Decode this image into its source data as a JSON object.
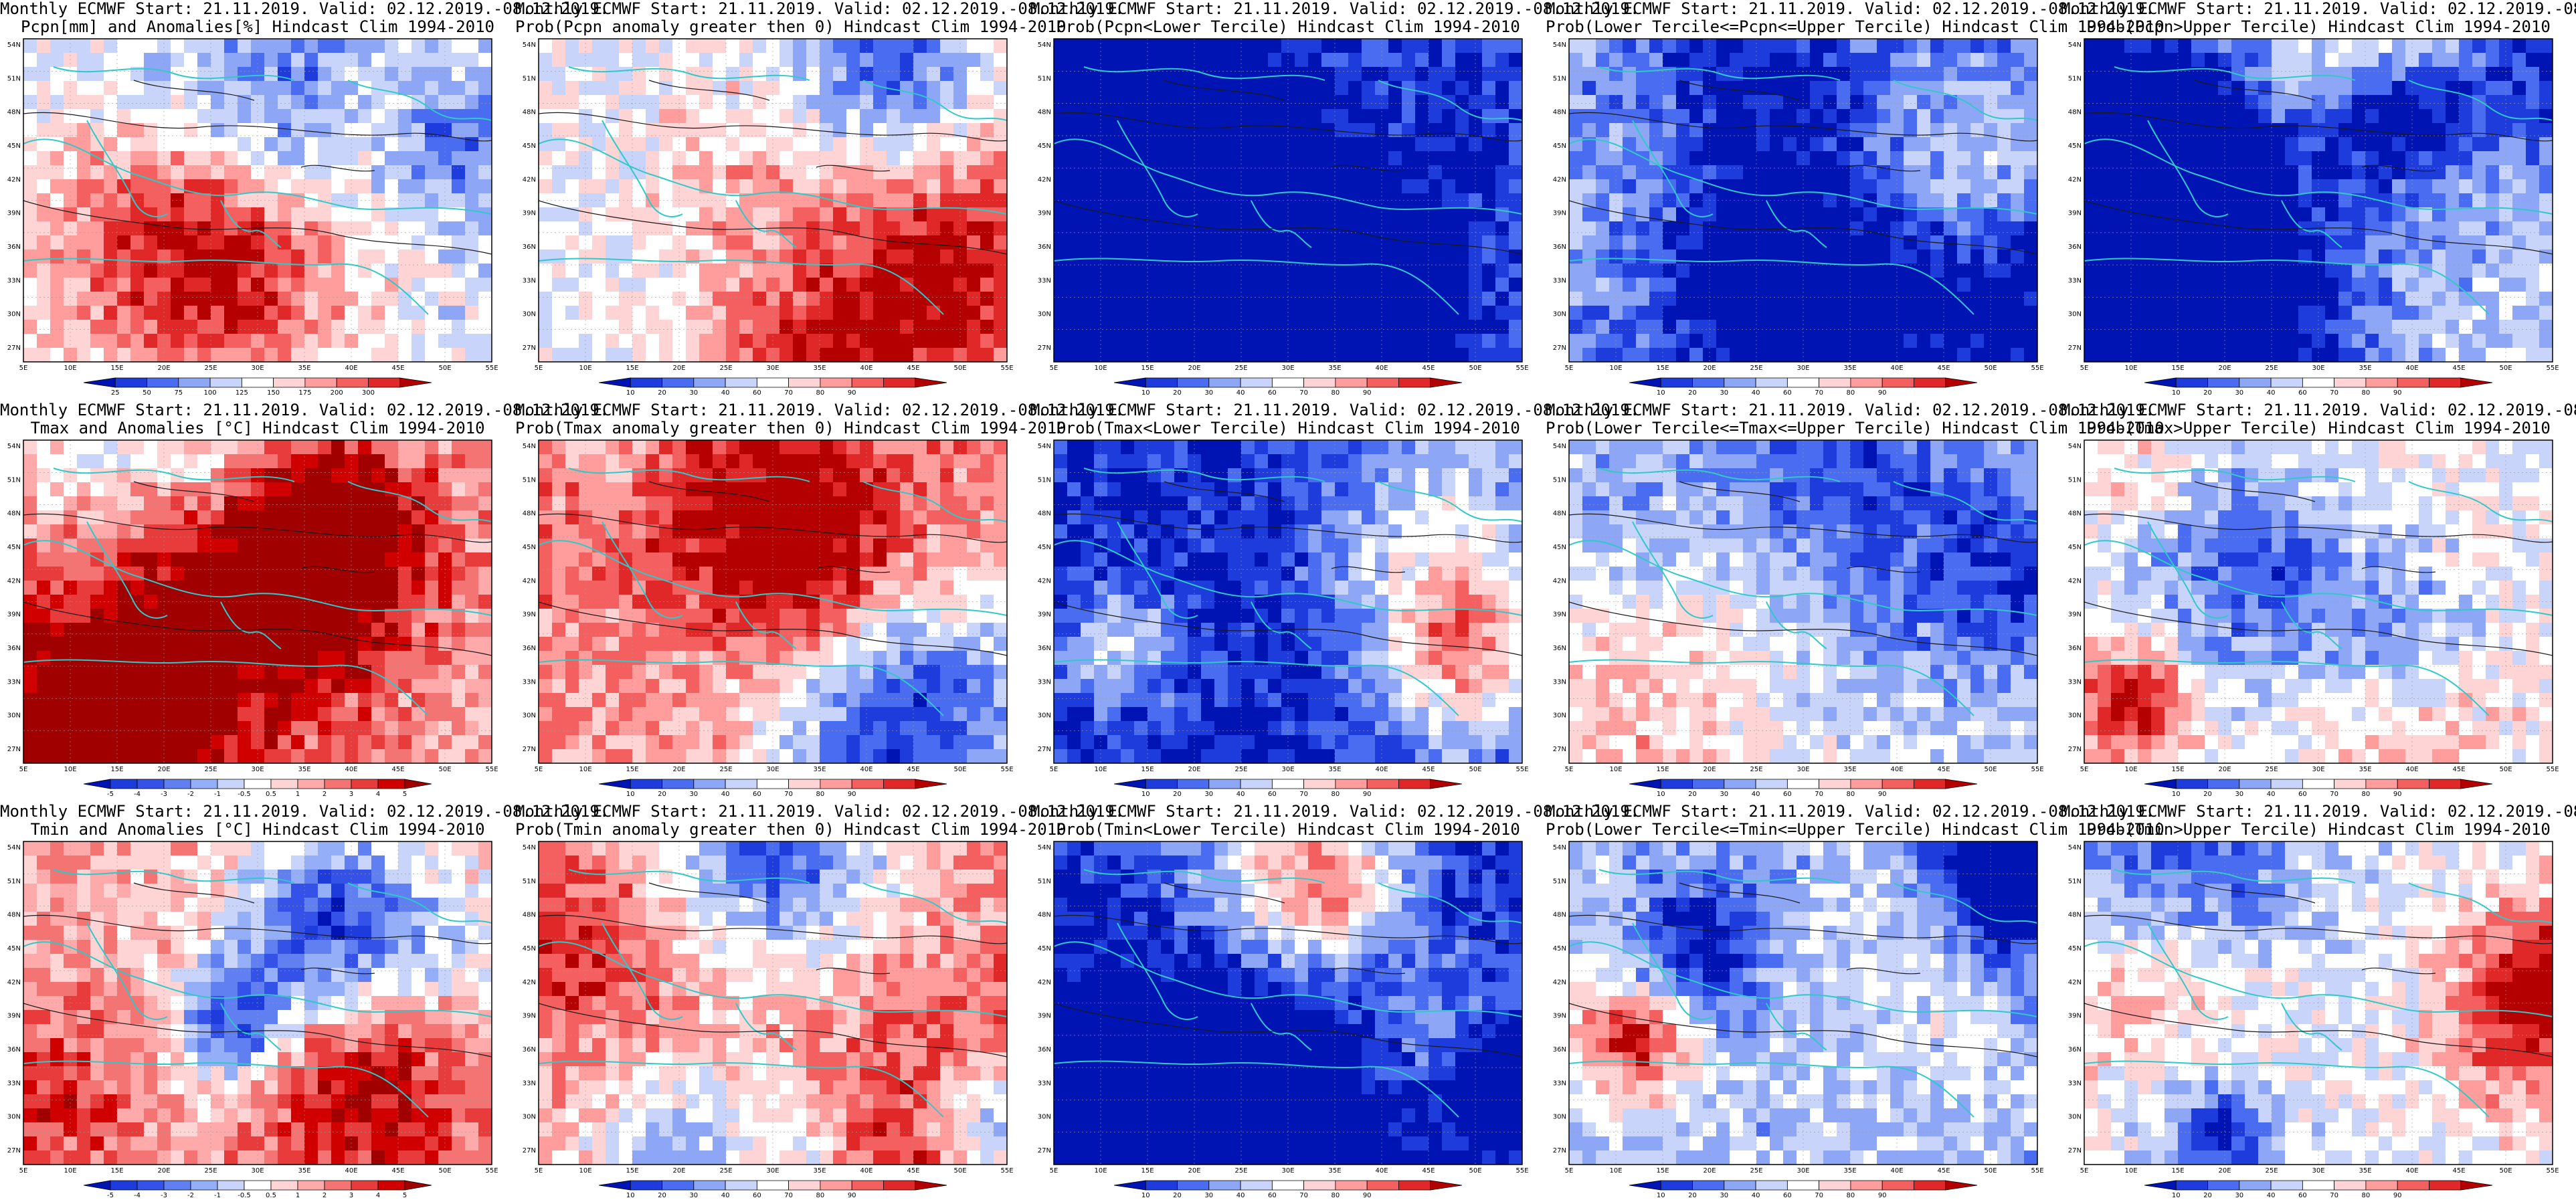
{
  "header": "Monthly ECMWF Start: 21.11.2019. Valid: 02.12.2019.-08.12.2019.",
  "x_ticks": [
    "5E",
    "10E",
    "15E",
    "20E",
    "25E",
    "30E",
    "35E",
    "40E",
    "45E",
    "50E",
    "55E"
  ],
  "y_ticks": [
    "54N",
    "51N",
    "48N",
    "45N",
    "42N",
    "39N",
    "36N",
    "33N",
    "30N",
    "27N"
  ],
  "colors": {
    "coast": "#2fc9c9",
    "contour": "#1a1a1a",
    "grid": "#9a9a9a"
  },
  "colorbars": {
    "prec": {
      "labels": [
        "25",
        "50",
        "75",
        "100",
        "125",
        "150",
        "175",
        "200",
        "300"
      ],
      "colors": [
        "#0014b4",
        "#1e3cdc",
        "#4a6cf0",
        "#8ea6f6",
        "#c8d4fa",
        "#ffffff",
        "#ffd4d4",
        "#ff9c9c",
        "#f46060",
        "#e02828",
        "#b40000"
      ]
    },
    "prob": {
      "labels": [
        "10",
        "20",
        "30",
        "40",
        "60",
        "70",
        "80",
        "90"
      ],
      "colors": [
        "#0014b4",
        "#1e3cdc",
        "#4a6cf0",
        "#8ea6f6",
        "#c8d4fa",
        "#ffffff",
        "#ffd4d4",
        "#ff9c9c",
        "#f46060",
        "#e02828",
        "#b40000"
      ]
    },
    "temp": {
      "labels": [
        "-5",
        "-4",
        "-3",
        "-2",
        "-1",
        "-0.5",
        "0.5",
        "1",
        "2",
        "3",
        "4",
        "5"
      ],
      "colors": [
        "#0014b4",
        "#1e3cdc",
        "#3452e8",
        "#6080f2",
        "#94aef8",
        "#c8d4fa",
        "#ffffff",
        "#ffd4d4",
        "#ffaaaa",
        "#f47474",
        "#e83c3c",
        "#d00000",
        "#a00000"
      ]
    }
  },
  "panels": [
    {
      "subtitle": "Pcpn[mm] and Anomalies[%] Hindcast Clim 1994-2010",
      "cbar": "prec",
      "bias": -0.1,
      "seed": 11
    },
    {
      "subtitle": "Prob(Pcpn anomaly greater then 0) Hindcast Clim 1994-2010",
      "cbar": "prob",
      "bias": -0.05,
      "seed": 12
    },
    {
      "subtitle": "Prob(Pcpn<Lower Tercile) Hindcast Clim 1994-2010",
      "cbar": "prob",
      "bias": -0.7,
      "seed": 13
    },
    {
      "subtitle": "Prob(Lower Tercile<=Pcpn<=Upper Tercile) Hindcast Clim 1994-2010",
      "cbar": "prob",
      "bias": -0.55,
      "seed": 14
    },
    {
      "subtitle": "Prob(Pcpn>Upper Tercile) Hindcast Clim 1994-2010",
      "cbar": "prob",
      "bias": -0.2,
      "seed": 15
    },
    {
      "subtitle": "Tmax and Anomalies [°C] Hindcast Clim 1994-2010",
      "cbar": "temp",
      "bias": 0.3,
      "seed": 21
    },
    {
      "subtitle": "Prob(Tmax anomaly greater then 0) Hindcast Clim 1994-2010",
      "cbar": "prob",
      "bias": 0.45,
      "seed": 22
    },
    {
      "subtitle": "Prob(Tmax<Lower Tercile) Hindcast Clim 1994-2010",
      "cbar": "prob",
      "bias": -0.85,
      "seed": 23
    },
    {
      "subtitle": "Prob(Lower Tercile<=Tmax<=Upper Tercile) Hindcast Clim 1994-2010",
      "cbar": "prob",
      "bias": -0.25,
      "seed": 24
    },
    {
      "subtitle": "Prob(Tmax>Upper Tercile) Hindcast Clim 1994-2010",
      "cbar": "prob",
      "bias": -0.1,
      "seed": 25
    },
    {
      "subtitle": "Tmin and Anomalies [°C] Hindcast Clim 1994-2010",
      "cbar": "temp",
      "bias": 0.35,
      "seed": 31
    },
    {
      "subtitle": "Prob(Tmin anomaly greater then 0) Hindcast Clim 1994-2010",
      "cbar": "prob",
      "bias": 0.5,
      "seed": 32
    },
    {
      "subtitle": "Prob(Tmin<Lower Tercile) Hindcast Clim 1994-2010",
      "cbar": "prob",
      "bias": -0.9,
      "seed": 33
    },
    {
      "subtitle": "Prob(Lower Tercile<=Tmin<=Upper Tercile) Hindcast Clim 1994-2010",
      "cbar": "prob",
      "bias": -0.3,
      "seed": 34
    },
    {
      "subtitle": "Prob(Tmin>Upper Tercile) Hindcast Clim 1994-2010",
      "cbar": "prob",
      "bias": -0.05,
      "seed": 35
    }
  ]
}
